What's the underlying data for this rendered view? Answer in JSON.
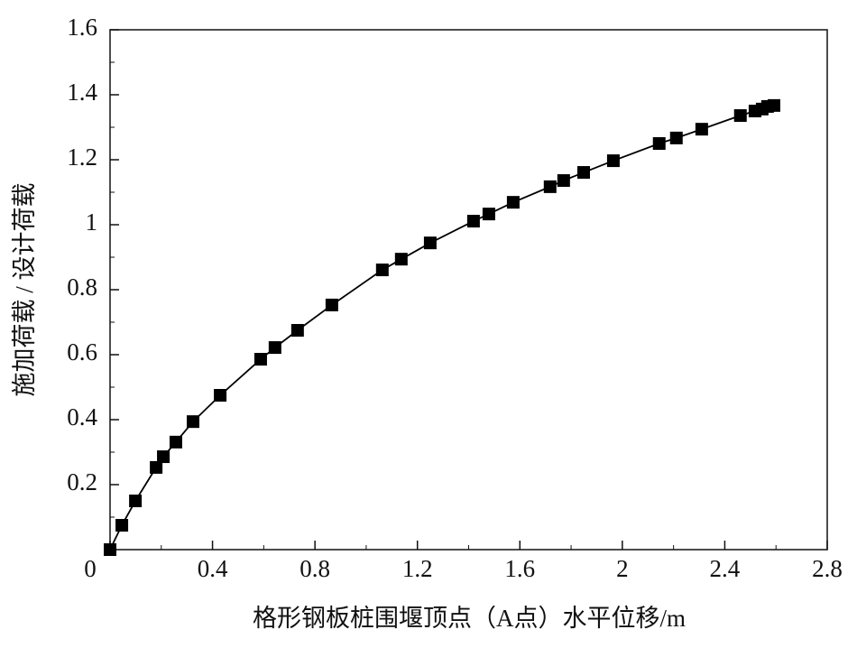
{
  "chart_data": {
    "type": "line",
    "x_label": "格形钢板桩围堰顶点（A点）水平位移/m",
    "y_label": "施加荷载 / 设计荷载",
    "xlim": [
      0,
      2.8
    ],
    "xticks": [
      0,
      0.4,
      0.8,
      1.2,
      1.6,
      2.0,
      2.4,
      2.8
    ],
    "ylim": [
      0,
      1.6
    ],
    "yticks": [
      0.2,
      0.4,
      0.6,
      0.8,
      1.0,
      1.2,
      1.4,
      1.6
    ],
    "color": "#000000",
    "x": [
      0,
      0.046,
      0.099,
      0.18,
      0.208,
      0.257,
      0.324,
      0.43,
      0.588,
      0.644,
      0.732,
      0.866,
      1.063,
      1.137,
      1.25,
      1.419,
      1.479,
      1.574,
      1.718,
      1.771,
      1.849,
      1.965,
      2.144,
      2.211,
      2.31,
      2.461,
      2.518,
      2.546,
      2.567,
      2.592
    ],
    "values": [
      0,
      0.075,
      0.15,
      0.253,
      0.286,
      0.331,
      0.394,
      0.475,
      0.586,
      0.622,
      0.675,
      0.753,
      0.861,
      0.894,
      0.944,
      1.011,
      1.033,
      1.069,
      1.117,
      1.136,
      1.161,
      1.197,
      1.25,
      1.267,
      1.294,
      1.336,
      1.35,
      1.356,
      1.364,
      1.367
    ]
  }
}
